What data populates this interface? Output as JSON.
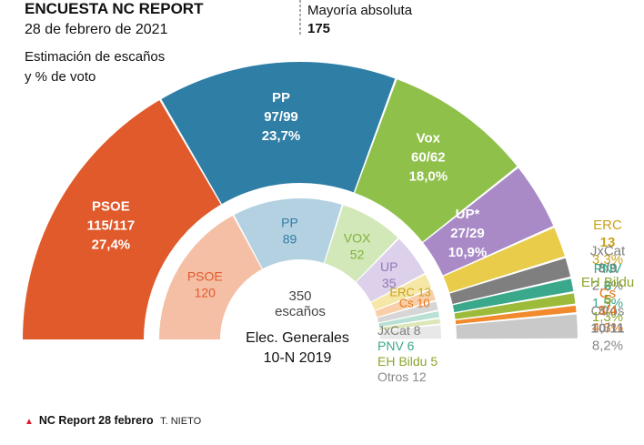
{
  "chart_data": {
    "type": "pie",
    "title": "ENCUESTA NC REPORT",
    "subtitle": "28 de febrero de 2021",
    "description_label": "Estimación de escaños",
    "description_label2": "y % de voto",
    "majority_label": "Mayoría absoluta",
    "majority_value": "175",
    "total_seats": 350,
    "poll": [
      {
        "party": "PSOE",
        "seats": 116,
        "seats_label": "115/117",
        "vote": "27,4%",
        "color": "#e05a2b",
        "text_color": "#ffffff"
      },
      {
        "party": "PP",
        "seats": 98,
        "seats_label": "97/99",
        "vote": "23,7%",
        "color": "#2f7ea6",
        "text_color": "#ffffff"
      },
      {
        "party": "Vox",
        "seats": 61,
        "seats_label": "60/62",
        "vote": "18,0%",
        "color": "#8fc04a",
        "text_color": "#ffffff"
      },
      {
        "party": "UP*",
        "seats": 28,
        "seats_label": "27/29",
        "vote": "10,9%",
        "color": "#a98ac7",
        "text_color": "#ffffff"
      },
      {
        "party": "ERC",
        "seats": 13,
        "seats_label": "13",
        "vote": "3,3%",
        "color": "#e9cc4a",
        "text_color": "#c9a21c"
      },
      {
        "party": "JxCat",
        "seats": 8.5,
        "seats_label": "8/9",
        "vote": "2,2%",
        "color": "#7f7f7f",
        "text_color": "#7f7f7f"
      },
      {
        "party": "PNV",
        "seats": 6,
        "seats_label": "6",
        "vote": "1,5%",
        "color": "#3aa88a",
        "text_color": "#3aa88a"
      },
      {
        "party": "EH Bildu",
        "seats": 5,
        "seats_label": "5",
        "vote": "1,3%",
        "color": "#9cbb3a",
        "text_color": "#8aa62b"
      },
      {
        "party": "Cs",
        "seats": 3.5,
        "seats_label": "3/4",
        "vote": "4,3%",
        "color": "#f08a2c",
        "text_color": "#e8761a"
      },
      {
        "party": "Otros",
        "seats": 10.5,
        "seats_label": "10/11",
        "vote": "8,2%",
        "color": "#c9c9c9",
        "text_color": "#888888"
      }
    ],
    "previous_label": "Elec. Generales",
    "previous_label2": "10-N 2019",
    "previous_total": "350",
    "previous_total_label": "escaños",
    "previous": [
      {
        "party": "PSOE",
        "seats": 120,
        "color": "#f5bfa6",
        "text_color": "#e05a2b"
      },
      {
        "party": "PP",
        "seats": 89,
        "color": "#b4d1e2",
        "text_color": "#2f7ea6"
      },
      {
        "party": "VOX",
        "seats": 52,
        "color": "#d3e8b9",
        "text_color": "#7fb33a"
      },
      {
        "party": "UP",
        "seats": 35,
        "color": "#ddd0ea",
        "text_color": "#9278b8"
      },
      {
        "party": "ERC",
        "seats": 13,
        "color": "#f5e7a6",
        "text_color": "#c9a21c"
      },
      {
        "party": "Cs",
        "seats": 10,
        "color": "#f8cfa8",
        "text_color": "#e8761a"
      },
      {
        "party": "JxCat",
        "seats": 8,
        "color": "#d6d6d6",
        "text_color": "#7f7f7f"
      },
      {
        "party": "PNV",
        "seats": 6,
        "color": "#b9e0d4",
        "text_color": "#3aa88a"
      },
      {
        "party": "EH Bildu",
        "seats": 5,
        "color": "#dbe7b6",
        "text_color": "#8aa62b"
      },
      {
        "party": "Otros",
        "seats": 12,
        "color": "#e8e8e8",
        "text_color": "#888888"
      }
    ]
  },
  "footer": {
    "source": "NC Report 28 febrero",
    "author": "T. NIETO"
  }
}
